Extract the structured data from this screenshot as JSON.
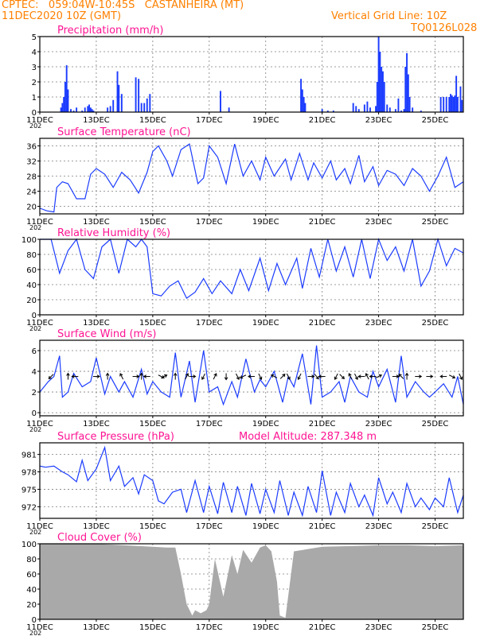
{
  "header": {
    "line1": "CPTEC:   059:04W-10:45S   CASTANHEIRA (MT)",
    "line2": "11DEC2020 10Z (GMT)",
    "grid_note": "Vertical Grid Line: 10Z",
    "model": "TQ0126L028"
  },
  "x_axis": {
    "ticks": [
      "11DEC",
      "13DEC",
      "15DEC",
      "17DEC",
      "19DEC",
      "21DEC",
      "23DEC",
      "25DEC"
    ],
    "tick_days": [
      0,
      2,
      4,
      6,
      8,
      10,
      12,
      14
    ],
    "range_days": [
      0,
      15
    ],
    "year_fragment": "202"
  },
  "colors": {
    "line": "#1c3cff",
    "title": "#ff1493",
    "header": "#ff8000",
    "cloud": "#a9a9a9",
    "arrow": "#000000",
    "grid": "#7f7f7f"
  },
  "chart_data": [
    {
      "type": "bar",
      "title": "Precipitation (mm/h)",
      "ylim": [
        0,
        5
      ],
      "yticks": [
        "0",
        "1",
        "2",
        "3",
        "4",
        "5"
      ],
      "series": [
        {
          "x": [
            0.75,
            0.8,
            0.85,
            0.9,
            0.95,
            1.0,
            1.1,
            1.2,
            1.3,
            1.5,
            1.6,
            1.7,
            1.75,
            1.8,
            1.85,
            1.9,
            2.4,
            2.5,
            2.6,
            2.75,
            2.8,
            2.9,
            3.4,
            3.5,
            3.6,
            3.7,
            3.8,
            3.9,
            6.4,
            6.7,
            9.25,
            9.3,
            9.35,
            9.4,
            10.0,
            10.2,
            10.4,
            11.1,
            11.2,
            11.3,
            11.5,
            11.6,
            11.7,
            11.9,
            11.95,
            12.0,
            12.05,
            12.1,
            12.15,
            12.2,
            12.3,
            12.4,
            12.6,
            12.7,
            12.8,
            12.9,
            12.95,
            13.0,
            13.05,
            13.1,
            13.2,
            13.5,
            14.2,
            14.3,
            14.4,
            14.5,
            14.55,
            14.6,
            14.65,
            14.7,
            14.75,
            14.8,
            14.9,
            14.95
          ],
          "values": [
            0.3,
            0.6,
            1.0,
            2.0,
            3.1,
            1.5,
            0.2,
            0.1,
            0.3,
            0.1,
            0.3,
            0.4,
            0.5,
            0.3,
            0.2,
            0.1,
            0.3,
            0.4,
            0.8,
            2.7,
            1.8,
            1.2,
            2.3,
            2.2,
            0.6,
            0.6,
            0.9,
            1.2,
            1.4,
            0.3,
            2.2,
            1.5,
            1.0,
            0.6,
            0.2,
            0.1,
            0.1,
            0.6,
            0.4,
            0.2,
            0.5,
            0.7,
            0.3,
            0.4,
            2.0,
            5.0,
            4.0,
            3.0,
            2.7,
            2.0,
            0.5,
            0.3,
            0.2,
            0.9,
            0.1,
            0.2,
            3.0,
            3.9,
            2.5,
            1.0,
            0.3,
            0.1,
            1.0,
            1.0,
            1.0,
            1.0,
            1.2,
            1.1,
            1.0,
            1.1,
            2.4,
            1.0,
            1.7,
            0.8
          ]
        }
      ]
    },
    {
      "type": "line",
      "title": "Surface Temperature (nC)",
      "ylim": [
        18,
        38
      ],
      "yticks": [
        "20",
        "24",
        "28",
        "32",
        "36"
      ],
      "series": [
        {
          "x": [
            0,
            0.25,
            0.5,
            0.6,
            0.8,
            1.0,
            1.3,
            1.6,
            1.8,
            2.0,
            2.3,
            2.6,
            2.9,
            3.2,
            3.5,
            3.8,
            4.0,
            4.2,
            4.5,
            4.7,
            5.0,
            5.3,
            5.6,
            5.8,
            6.0,
            6.3,
            6.6,
            6.9,
            7.2,
            7.5,
            7.8,
            8.0,
            8.3,
            8.7,
            8.9,
            9.2,
            9.5,
            9.7,
            10.0,
            10.3,
            10.5,
            10.8,
            11.0,
            11.3,
            11.5,
            11.8,
            12.0,
            12.3,
            12.6,
            12.9,
            13.2,
            13.5,
            13.8,
            14.1,
            14.4,
            14.7,
            15.0
          ],
          "values": [
            19.5,
            18.8,
            18.5,
            25,
            26.5,
            26,
            22,
            22,
            28.5,
            30,
            28.5,
            25,
            29,
            27,
            23.5,
            29,
            34.5,
            36,
            32,
            28,
            35,
            36.5,
            26,
            27.5,
            36,
            33,
            26,
            36.5,
            28,
            32,
            27,
            33,
            28,
            32.5,
            27,
            34,
            27,
            31.5,
            27.5,
            32,
            27,
            30,
            26,
            33.5,
            26.5,
            30.5,
            25.5,
            29.5,
            28.5,
            25.5,
            30,
            28,
            24,
            28,
            33,
            25,
            26.5
          ]
        }
      ]
    },
    {
      "type": "line",
      "title": "Relative Humidity (%)",
      "ylim": [
        0,
        100
      ],
      "yticks": [
        "0",
        "20",
        "40",
        "60",
        "80",
        "100"
      ],
      "series": [
        {
          "x": [
            0,
            0.4,
            0.7,
            1.0,
            1.3,
            1.6,
            1.9,
            2.2,
            2.5,
            2.8,
            3.1,
            3.4,
            3.6,
            3.8,
            4.0,
            4.3,
            4.6,
            4.9,
            5.2,
            5.5,
            5.8,
            6.1,
            6.4,
            6.8,
            7.1,
            7.4,
            7.8,
            8.1,
            8.4,
            8.7,
            9.1,
            9.3,
            9.6,
            9.9,
            10.2,
            10.5,
            10.8,
            11.1,
            11.4,
            11.7,
            12.0,
            12.3,
            12.6,
            12.9,
            13.2,
            13.5,
            13.8,
            14.1,
            14.4,
            14.7,
            15.0
          ],
          "values": [
            100,
            100,
            55,
            85,
            100,
            60,
            48,
            90,
            100,
            55,
            100,
            90,
            100,
            90,
            28,
            25,
            38,
            45,
            22,
            30,
            48,
            28,
            45,
            28,
            60,
            32,
            75,
            32,
            68,
            40,
            75,
            35,
            88,
            50,
            100,
            58,
            90,
            50,
            100,
            48,
            100,
            72,
            90,
            58,
            100,
            38,
            58,
            100,
            65,
            88,
            82
          ]
        }
      ]
    },
    {
      "type": "line",
      "title": "Surface Wind (m/s)",
      "ylim": [
        -0.3,
        7
      ],
      "yticks": [
        "0",
        "2",
        "4",
        "6"
      ],
      "series": [
        {
          "x": [
            0,
            0.3,
            0.5,
            0.7,
            0.8,
            1.0,
            1.2,
            1.5,
            1.8,
            2.0,
            2.3,
            2.5,
            2.8,
            3.0,
            3.3,
            3.6,
            3.8,
            4.0,
            4.3,
            4.6,
            4.8,
            5.0,
            5.3,
            5.5,
            5.8,
            6.0,
            6.3,
            6.5,
            6.8,
            7.0,
            7.3,
            7.6,
            7.8,
            8.0,
            8.3,
            8.6,
            8.8,
            9.0,
            9.3,
            9.6,
            9.8,
            10.0,
            10.3,
            10.6,
            10.8,
            11.0,
            11.3,
            11.6,
            11.8,
            12.0,
            12.3,
            12.6,
            12.8,
            13.0,
            13.3,
            13.6,
            13.8,
            14.0,
            14.3,
            14.6,
            14.8,
            15.0
          ],
          "values": [
            2,
            3,
            3.5,
            5.5,
            1.5,
            2,
            3.8,
            2.5,
            3,
            5.3,
            1.8,
            3.5,
            2,
            3,
            1.5,
            4.2,
            1.8,
            3,
            2,
            1.5,
            5.8,
            1.5,
            5,
            1,
            6,
            2,
            2.5,
            0.8,
            3,
            1.5,
            5.2,
            2,
            3.2,
            2.5,
            4,
            1,
            3.5,
            2.5,
            5.7,
            0.8,
            6.5,
            1.5,
            2,
            3,
            1,
            3.5,
            2,
            1.5,
            4,
            2.5,
            4.2,
            1,
            5.5,
            1.5,
            3,
            2,
            1.5,
            2,
            2.8,
            1.5,
            3.5,
            0.8
          ]
        }
      ],
      "wind_arrows": {
        "x": [
          0.4,
          1.0,
          1.25,
          2.0,
          2.4,
          2.9,
          3.4,
          3.6,
          3.8,
          4.3,
          4.4,
          4.8,
          5.2,
          5.4,
          5.8,
          6.2,
          6.6,
          7.0,
          7.2,
          7.5,
          7.8,
          8.3,
          8.6,
          8.8,
          9.2,
          9.6,
          9.8,
          10.0,
          10.5,
          10.7,
          11.0,
          11.2,
          11.4,
          11.6,
          11.8,
          12.0,
          12.6,
          12.8,
          13.0,
          13.4,
          13.8,
          14.3,
          14.6,
          14.9
        ],
        "u": [
          -1,
          0,
          -1,
          1,
          0,
          -0.5,
          1,
          0,
          -1,
          1,
          1,
          0,
          0.5,
          1,
          -0.5,
          0.5,
          0,
          0.5,
          -1,
          -1,
          0.5,
          -1,
          1,
          0.5,
          -0.5,
          1,
          0.8,
          -1,
          -0.5,
          1,
          -0.5,
          0.5,
          -1,
          -0.5,
          -1,
          1,
          0.5,
          -0.5,
          0,
          1,
          1,
          -1,
          1,
          0.5
        ],
        "v": [
          -1,
          1,
          0,
          0,
          1,
          1,
          0,
          1,
          0,
          -0.5,
          0.5,
          1,
          1,
          0,
          -1,
          1,
          -1,
          -1,
          -0.5,
          0,
          -1,
          0.5,
          1,
          -1,
          -1,
          0,
          -1,
          0,
          -1,
          -1,
          1,
          -1,
          0,
          1,
          0,
          0.5,
          0,
          0.5,
          1,
          0,
          0,
          0,
          -0.5,
          -1
        ]
      }
    },
    {
      "type": "line",
      "title": "Surface Pressure (hPa)",
      "annotation": "Model Altitude: 287.348 m",
      "ylim": [
        970,
        983
      ],
      "yticks": [
        "972",
        "975",
        "978",
        "981"
      ],
      "series": [
        {
          "x": [
            0,
            0.2,
            0.5,
            0.8,
            1.0,
            1.3,
            1.5,
            1.7,
            2.0,
            2.3,
            2.5,
            2.8,
            3.0,
            3.3,
            3.5,
            3.7,
            4.0,
            4.2,
            4.4,
            4.7,
            5.0,
            5.2,
            5.5,
            5.8,
            6.0,
            6.3,
            6.5,
            6.8,
            7.0,
            7.3,
            7.5,
            7.8,
            8.0,
            8.3,
            8.5,
            8.8,
            9.0,
            9.3,
            9.5,
            9.8,
            10.0,
            10.3,
            10.5,
            10.8,
            11.0,
            11.3,
            11.5,
            11.8,
            12.0,
            12.3,
            12.5,
            12.8,
            13.0,
            13.3,
            13.5,
            13.8,
            14.0,
            14.3,
            14.5,
            14.8,
            15.0
          ],
          "values": [
            979,
            978.8,
            979,
            978,
            977.5,
            976.3,
            980,
            976.5,
            978.5,
            982.2,
            976.5,
            979,
            975.5,
            977,
            974.2,
            977.5,
            976.5,
            973,
            972.5,
            974.5,
            975,
            971,
            976.5,
            971,
            975.5,
            970.8,
            976.2,
            971,
            975.5,
            970.5,
            976,
            970.8,
            975,
            971,
            976.5,
            970.5,
            974.5,
            970.5,
            975.5,
            971,
            978.2,
            970.5,
            974.5,
            971,
            976,
            972,
            974,
            970.5,
            977,
            972.5,
            974.5,
            971,
            976,
            972,
            973.5,
            971.5,
            973.5,
            972,
            977,
            971,
            974
          ]
        }
      ]
    },
    {
      "type": "area",
      "title": "Cloud Cover (%)",
      "ylim": [
        0,
        100
      ],
      "yticks": [
        "0",
        "20",
        "40",
        "60",
        "80",
        "100"
      ],
      "series": [
        {
          "x": [
            0,
            1.0,
            2.0,
            3.0,
            4.0,
            4.5,
            4.8,
            5.0,
            5.2,
            5.4,
            5.5,
            5.7,
            5.9,
            6.0,
            6.2,
            6.5,
            6.8,
            7.0,
            7.2,
            7.5,
            7.8,
            8.0,
            8.2,
            8.4,
            8.5,
            8.7,
            9.0,
            9.5,
            10.0,
            11.0,
            12.0,
            13.0,
            14.0,
            15.0
          ],
          "values": [
            100,
            100,
            100,
            98,
            96,
            95,
            95,
            60,
            20,
            5,
            12,
            8,
            12,
            20,
            80,
            30,
            85,
            60,
            92,
            75,
            95,
            98,
            90,
            50,
            5,
            2,
            90,
            93,
            96,
            97,
            98,
            98,
            97,
            98
          ]
        }
      ]
    }
  ]
}
